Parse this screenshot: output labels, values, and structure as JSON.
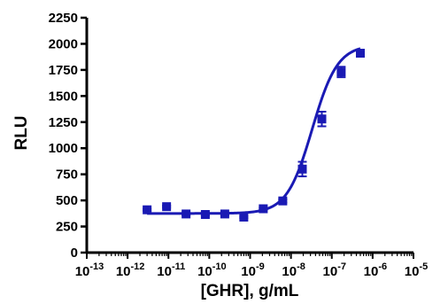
{
  "chart_data": {
    "type": "scatter",
    "title": "",
    "xlabel": "[GHR], g/mL",
    "ylabel": "RLU",
    "xscale": "log",
    "xlim": [
      1e-13,
      1e-05
    ],
    "ylim": [
      0,
      2250
    ],
    "xtick_exponents": [
      -13,
      -12,
      -11,
      -10,
      -9,
      -8,
      -7,
      -6,
      -5
    ],
    "yticks": [
      0,
      250,
      500,
      750,
      1000,
      1250,
      1500,
      1750,
      2000,
      2250
    ],
    "series": [
      {
        "marker": "square",
        "color": "#1a1ab4",
        "points": [
          {
            "x": 3e-12,
            "y": 410,
            "err": 10
          },
          {
            "x": 9e-12,
            "y": 440,
            "err": 10
          },
          {
            "x": 2.7e-11,
            "y": 370,
            "err": 10
          },
          {
            "x": 8e-11,
            "y": 365,
            "err": 10
          },
          {
            "x": 2.4e-10,
            "y": 370,
            "err": 10
          },
          {
            "x": 7e-10,
            "y": 340,
            "err": 10
          },
          {
            "x": 2.1e-09,
            "y": 420,
            "err": 10
          },
          {
            "x": 6.3e-09,
            "y": 495,
            "err": 15
          },
          {
            "x": 1.9e-08,
            "y": 800,
            "err": 70
          },
          {
            "x": 5.7e-08,
            "y": 1280,
            "err": 70
          },
          {
            "x": 1.7e-07,
            "y": 1730,
            "err": 50
          },
          {
            "x": 5e-07,
            "y": 1910,
            "err": 15
          }
        ],
        "fit": {
          "bottom": 375,
          "top": 1990,
          "log_ec50": -7.48,
          "hill": 1.4
        }
      }
    ]
  }
}
